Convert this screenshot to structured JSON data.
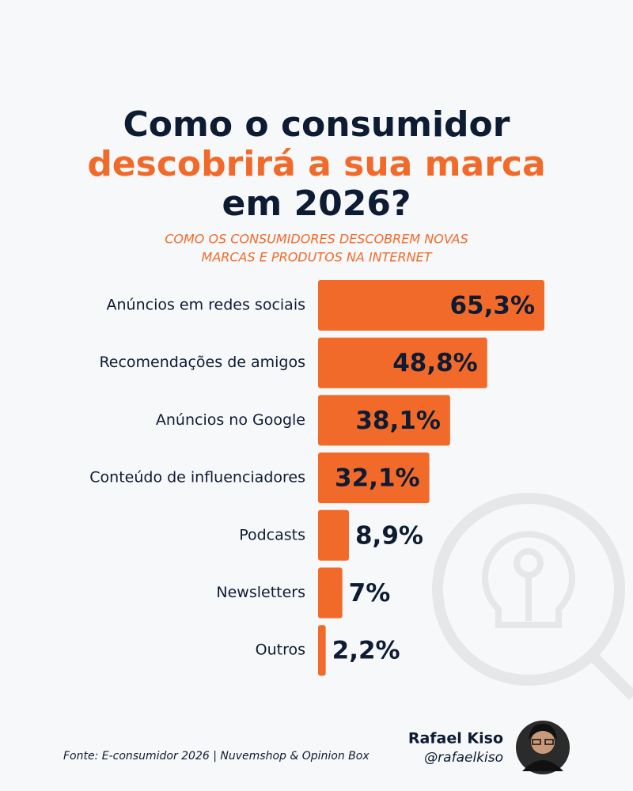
{
  "chart_data": {
    "type": "bar",
    "orientation": "horizontal",
    "title": [
      {
        "text": "Como o consumidor",
        "color": "#0d1b33"
      },
      {
        "text": "descobrirá a sua marca",
        "color": "#f26a2a"
      },
      {
        "text": "em 2026?",
        "color": "#0d1b33"
      }
    ],
    "subtitle": [
      "COMO OS CONSUMIDORES DESCOBREM NOVAS",
      "MARCAS E PRODUTOS NA INTERNET"
    ],
    "categories": [
      "Anúncios em redes sociais",
      "Recomendações de amigos",
      "Anúncios no Google",
      "Conteúdo de influenciadores",
      "Podcasts",
      "Newsletters",
      "Outros"
    ],
    "values": [
      65.3,
      48.8,
      38.1,
      32.1,
      8.9,
      7,
      2.2
    ],
    "value_labels": [
      "65,3%",
      "48,8%",
      "38,1%",
      "32,1%",
      "8,9%",
      "7%",
      "2,2%"
    ],
    "color": "#f26a2a",
    "source": "Fonte: E-consumidor 2026 | Nuvemshop & Opinion Box",
    "author": {
      "name": "Rafael Kiso",
      "handle": "@rafaelkiso"
    }
  }
}
